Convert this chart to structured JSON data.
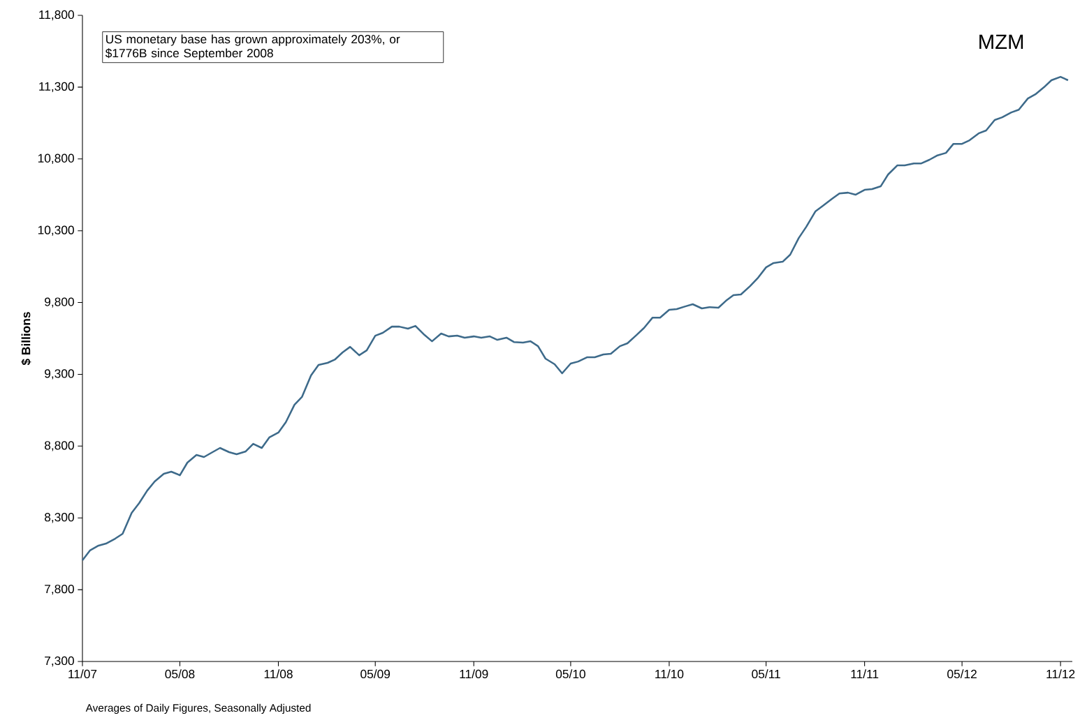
{
  "chart_data": {
    "type": "line",
    "title": "MZM",
    "ylabel": "$ Billions",
    "annotations": [
      "US monetary base has grown approximately 203%, or $1776B since September 2008",
      "Averages of Daily Figures, Seasonally Adjusted"
    ],
    "x": [
      "2007-11-01",
      "2007-11-15",
      "2007-12-01",
      "2007-12-15",
      "2008-01-01",
      "2008-01-15",
      "2008-02-01",
      "2008-02-15",
      "2008-03-01",
      "2008-03-15",
      "2008-04-01",
      "2008-04-15",
      "2008-05-01",
      "2008-05-15",
      "2008-06-01",
      "2008-06-15",
      "2008-07-01",
      "2008-07-15",
      "2008-08-01",
      "2008-08-15",
      "2008-09-01",
      "2008-09-15",
      "2008-10-01",
      "2008-10-15",
      "2008-11-01",
      "2008-11-15",
      "2008-12-01",
      "2008-12-15",
      "2009-01-01",
      "2009-01-15",
      "2009-02-01",
      "2009-02-15",
      "2009-03-01",
      "2009-03-15",
      "2009-04-01",
      "2009-04-15",
      "2009-05-01",
      "2009-05-15",
      "2009-06-01",
      "2009-06-15",
      "2009-07-01",
      "2009-07-15",
      "2009-08-01",
      "2009-08-15",
      "2009-09-01",
      "2009-09-15",
      "2009-10-01",
      "2009-10-15",
      "2009-11-01",
      "2009-11-15",
      "2009-12-01",
      "2009-12-15",
      "2010-01-01",
      "2010-01-15",
      "2010-02-01",
      "2010-02-15",
      "2010-03-01",
      "2010-03-15",
      "2010-04-01",
      "2010-04-15",
      "2010-05-01",
      "2010-05-15",
      "2010-06-01",
      "2010-06-15",
      "2010-07-01",
      "2010-07-15",
      "2010-08-01",
      "2010-08-15",
      "2010-09-01",
      "2010-09-15",
      "2010-10-01",
      "2010-10-15",
      "2010-11-01",
      "2010-11-15",
      "2010-12-01",
      "2010-12-15",
      "2011-01-01",
      "2011-01-15",
      "2011-02-01",
      "2011-02-15",
      "2011-03-01",
      "2011-03-15",
      "2011-04-01",
      "2011-04-15",
      "2011-05-01",
      "2011-05-15",
      "2011-06-01",
      "2011-06-15",
      "2011-07-01",
      "2011-07-15",
      "2011-08-01",
      "2011-08-15",
      "2011-09-01",
      "2011-09-15",
      "2011-10-01",
      "2011-10-15",
      "2011-11-01",
      "2011-11-15",
      "2011-12-01",
      "2011-12-15",
      "2012-01-01",
      "2012-01-15",
      "2012-02-01",
      "2012-02-15",
      "2012-03-01",
      "2012-03-15",
      "2012-04-01",
      "2012-04-15",
      "2012-05-01",
      "2012-05-15",
      "2012-06-01",
      "2012-06-15",
      "2012-07-01",
      "2012-07-15",
      "2012-08-01",
      "2012-08-15",
      "2012-09-01",
      "2012-09-15",
      "2012-10-01",
      "2012-10-15",
      "2012-11-01",
      "2012-11-15"
    ],
    "series": [
      {
        "color": "#3d6a8a",
        "values": [
          8005,
          8073,
          8107,
          8121,
          8155,
          8189,
          8335,
          8403,
          8490,
          8554,
          8607,
          8622,
          8597,
          8685,
          8738,
          8724,
          8758,
          8787,
          8758,
          8743,
          8763,
          8816,
          8787,
          8860,
          8894,
          8967,
          9088,
          9142,
          9292,
          9365,
          9380,
          9404,
          9453,
          9491,
          9433,
          9467,
          9569,
          9589,
          9632,
          9632,
          9618,
          9637,
          9574,
          9530,
          9584,
          9564,
          9569,
          9555,
          9564,
          9555,
          9564,
          9540,
          9555,
          9525,
          9521,
          9530,
          9496,
          9409,
          9370,
          9307,
          9375,
          9389,
          9419,
          9419,
          9438,
          9443,
          9496,
          9516,
          9574,
          9623,
          9695,
          9695,
          9749,
          9754,
          9773,
          9788,
          9759,
          9768,
          9764,
          9812,
          9851,
          9856,
          9914,
          9968,
          10045,
          10075,
          10084,
          10133,
          10249,
          10327,
          10434,
          10473,
          10522,
          10560,
          10565,
          10551,
          10585,
          10590,
          10609,
          10692,
          10755,
          10755,
          10769,
          10769,
          10794,
          10823,
          10842,
          10905,
          10905,
          10930,
          10978,
          10998,
          11071,
          11090,
          11124,
          11143,
          11221,
          11250,
          11299,
          11348,
          11372,
          11348
        ]
      }
    ],
    "xlim": [
      "2007-11-01",
      "2012-11-23"
    ],
    "xticks": [
      {
        "value": "2007-11-01",
        "label": "11/07"
      },
      {
        "value": "2008-05-01",
        "label": "05/08"
      },
      {
        "value": "2008-11-01",
        "label": "11/08"
      },
      {
        "value": "2009-05-01",
        "label": "05/09"
      },
      {
        "value": "2009-11-01",
        "label": "11/09"
      },
      {
        "value": "2010-05-01",
        "label": "05/10"
      },
      {
        "value": "2010-11-01",
        "label": "11/10"
      },
      {
        "value": "2011-05-01",
        "label": "05/11"
      },
      {
        "value": "2011-11-01",
        "label": "11/11"
      },
      {
        "value": "2012-05-01",
        "label": "05/12"
      },
      {
        "value": "2012-11-01",
        "label": "11/12"
      }
    ],
    "ylim": [
      7300,
      11800
    ],
    "yticks": [
      {
        "value": 7300,
        "label": "7,300"
      },
      {
        "value": 7800,
        "label": "7,800"
      },
      {
        "value": 8300,
        "label": "8,300"
      },
      {
        "value": 8800,
        "label": "8,800"
      },
      {
        "value": 9300,
        "label": "9,300"
      },
      {
        "value": 9800,
        "label": "9,800"
      },
      {
        "value": 10300,
        "label": "10,300"
      },
      {
        "value": 10800,
        "label": "10,800"
      },
      {
        "value": 11300,
        "label": "11,300"
      },
      {
        "value": 11800,
        "label": "11,800"
      }
    ],
    "marker": "none",
    "line_style": "solid"
  }
}
